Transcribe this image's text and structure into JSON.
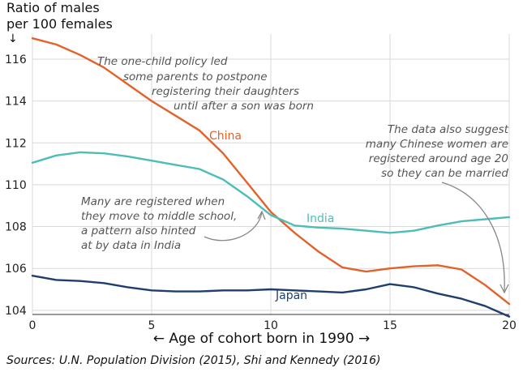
{
  "chart_data": {
    "type": "line",
    "ylabel_line1": "Ratio of males",
    "ylabel_line2": "per 100 females",
    "ylabel_arrow": "↓",
    "xlabel": "← Age of cohort born in 1990 →",
    "source": "Sources: U.N. Population Division (2015), Shi and Kennedy (2016)",
    "xlim": [
      0,
      20
    ],
    "ylim": [
      103.8,
      117.2
    ],
    "x_ticks": [
      0,
      5,
      10,
      15,
      20
    ],
    "y_ticks": [
      104,
      106,
      108,
      110,
      112,
      114,
      116
    ],
    "grid": true,
    "series": [
      {
        "name": "China",
        "color": "#e2622a",
        "x": [
          0,
          1,
          2,
          3,
          4,
          5,
          6,
          7,
          8,
          9,
          10,
          11,
          12,
          13,
          14,
          15,
          16,
          17,
          18,
          19,
          20
        ],
        "y": [
          117.0,
          116.7,
          116.2,
          115.6,
          114.8,
          114.0,
          113.3,
          112.6,
          111.5,
          110.1,
          108.7,
          107.7,
          106.8,
          106.05,
          105.85,
          106.0,
          106.1,
          106.15,
          105.95,
          105.2,
          104.3
        ]
      },
      {
        "name": "India",
        "color": "#4dbdb8",
        "x": [
          0,
          1,
          2,
          3,
          4,
          5,
          6,
          7,
          8,
          9,
          10,
          11,
          12,
          13,
          14,
          15,
          16,
          17,
          18,
          19,
          20
        ],
        "y": [
          111.05,
          111.4,
          111.55,
          111.5,
          111.35,
          111.15,
          110.95,
          110.75,
          110.25,
          109.45,
          108.55,
          108.05,
          107.95,
          107.9,
          107.8,
          107.7,
          107.8,
          108.05,
          108.25,
          108.35,
          108.45
        ]
      },
      {
        "name": "Japan",
        "color": "#1f3e6e",
        "x": [
          0,
          1,
          2,
          3,
          4,
          5,
          6,
          7,
          8,
          9,
          10,
          11,
          12,
          13,
          14,
          15,
          16,
          17,
          18,
          19,
          20
        ],
        "y": [
          105.65,
          105.45,
          105.4,
          105.3,
          105.1,
          104.95,
          104.9,
          104.9,
          104.95,
          104.95,
          105.0,
          104.95,
          104.9,
          104.85,
          105.0,
          105.25,
          105.1,
          104.8,
          104.55,
          104.2,
          103.7
        ]
      }
    ],
    "annotations": [
      {
        "name": "one-child",
        "lines": [
          "The one-child policy led",
          "some parents to postpone",
          "registering their daughters",
          "until after a son was born"
        ]
      },
      {
        "name": "middle-school",
        "lines": [
          "Many are registered when",
          "they move to middle school,",
          "a pattern also hinted",
          "at by data in India"
        ]
      },
      {
        "name": "age-20",
        "lines": [
          "The data also suggest",
          "many Chinese women are",
          "registered around age 20",
          "so they can be married"
        ]
      }
    ]
  }
}
